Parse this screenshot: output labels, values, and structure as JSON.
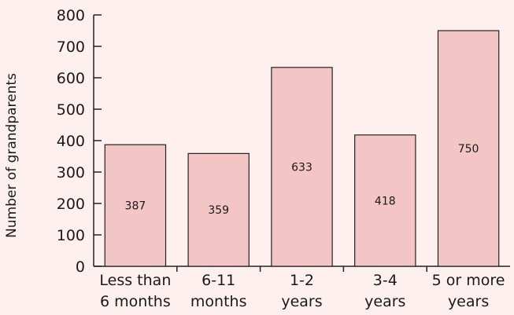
{
  "chart_data": {
    "type": "bar",
    "title": "",
    "xlabel": "",
    "ylabel": "Number of grandparents",
    "ylim": [
      0,
      800
    ],
    "yticks": [
      0,
      100,
      200,
      300,
      400,
      500,
      600,
      700,
      800
    ],
    "categories": [
      [
        "Less than",
        "6 months"
      ],
      [
        "6-11",
        "months"
      ],
      [
        "1-2",
        "years"
      ],
      [
        "3-4",
        "years"
      ],
      [
        "5 or more",
        "years"
      ]
    ],
    "values": [
      387,
      359,
      633,
      418,
      750
    ],
    "data_labels": [
      "387",
      "359",
      "633",
      "418",
      "750"
    ],
    "grid": false,
    "colors": {
      "background": "#fdf0ee",
      "bar_fill": "#f4c5c5",
      "bar_stroke": "#222222",
      "axis": "#222222"
    }
  }
}
